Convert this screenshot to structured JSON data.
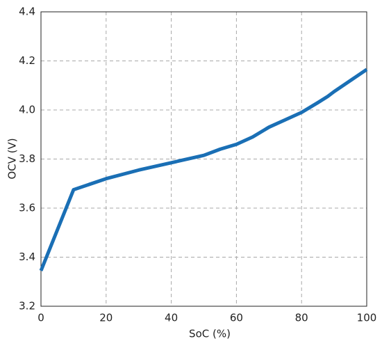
{
  "chart_data": {
    "type": "line",
    "x_label": "SoC (%)",
    "y_label": "OCV (V)",
    "series": [
      {
        "color": "#1a6fb5",
        "x": [
          0,
          10,
          20,
          30,
          40,
          50,
          55,
          60,
          65,
          70,
          75,
          80,
          85,
          88,
          90,
          95,
          100
        ],
        "values": [
          3.345,
          3.675,
          3.72,
          3.755,
          3.785,
          3.815,
          3.84,
          3.86,
          3.89,
          3.93,
          3.96,
          3.99,
          4.03,
          4.055,
          4.075,
          4.12,
          4.165
        ]
      }
    ],
    "xlim": [
      0,
      100
    ],
    "xticks": [
      0,
      20,
      40,
      60,
      80,
      100
    ],
    "ylim": [
      3.2,
      4.4
    ],
    "yticks": [
      3.2,
      3.4,
      3.6,
      3.8,
      {
        "value": 4,
        "label": "4.0"
      },
      4.2,
      4.4
    ],
    "grid": true
  }
}
